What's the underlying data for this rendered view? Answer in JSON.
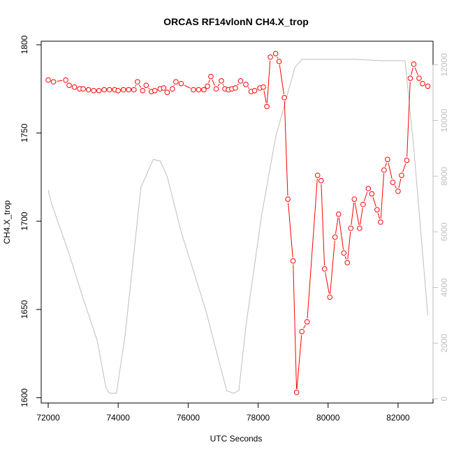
{
  "chart_data": {
    "type": "line",
    "title": "ORCAS RF14vlonN CH4.X_trop",
    "xlabel": "UTC Seconds",
    "ylabel": "CH4.X_trop",
    "xlim": [
      71800,
      83000
    ],
    "ylim": [
      1597,
      1802
    ],
    "y2lim": [
      -150,
      12850
    ],
    "xticks": [
      "72000",
      "74000",
      "76000",
      "78000",
      "80000",
      "82000"
    ],
    "yticks": [
      "1600",
      "1650",
      "1700",
      "1750",
      "1800"
    ],
    "y2ticks": [
      "0",
      "2000",
      "4000",
      "6000",
      "8000",
      "10000",
      "12000"
    ],
    "grid": false,
    "legend": "none",
    "colors": {
      "primary": "#ff0000",
      "secondary": "#bebebe"
    },
    "series": [
      {
        "axis": "left",
        "style": "line+circles",
        "x": [
          72000,
          72150,
          72500,
          72600,
          72750,
          72900,
          73000,
          73150,
          73300,
          73450,
          73600,
          73750,
          73900,
          74000,
          74150,
          74300,
          74450,
          74550,
          74700,
          74800,
          74950,
          75050,
          75200,
          75300,
          75400,
          75550,
          75650,
          75800,
          76150,
          76300,
          76450,
          76550,
          76650,
          76800,
          76950,
          77050,
          77150,
          77250,
          77350,
          77500,
          77650,
          77800,
          77900,
          78050,
          78150,
          78250,
          78350,
          78500,
          78600,
          78750,
          78850,
          79000,
          79100,
          79250,
          79400,
          79700,
          79800,
          79900,
          80050,
          80200,
          80300,
          80450,
          80550,
          80650,
          80750,
          80900,
          81000,
          81150,
          81250,
          81400,
          81500,
          81600,
          81700,
          81850,
          82000,
          82100,
          82250,
          82350,
          82450,
          82600,
          82700,
          82850
        ],
        "y": [
          1780,
          1779,
          1780,
          1777,
          1776,
          1775,
          1775,
          1774.5,
          1774,
          1774,
          1774.5,
          1774.5,
          1774.5,
          1774,
          1774.5,
          1774.5,
          1774.5,
          1779,
          1774,
          1777,
          1773.5,
          1774,
          1775,
          1775.5,
          1773,
          1775,
          1779,
          1778,
          1774.5,
          1774.5,
          1774.5,
          1776.5,
          1782,
          1775,
          1779.5,
          1775,
          1774.5,
          1775,
          1775.5,
          1779.5,
          1777.5,
          1773.5,
          1774,
          1775.5,
          1776,
          1765,
          1793,
          1795,
          1790.5,
          1770,
          1712.5,
          1677.5,
          1603,
          1637.5,
          1643,
          1726,
          1723,
          1673,
          1657,
          1691,
          1704,
          1682,
          1676.5,
          1696,
          1712.5,
          1696,
          1709.5,
          1718.5,
          1715.5,
          1706.5,
          1699.5,
          1729,
          1735,
          1722,
          1717,
          1726,
          1734.5,
          1781,
          1789,
          1781,
          1778,
          1776.5
        ]
      },
      {
        "axis": "right",
        "style": "line",
        "x": [
          72000,
          72100,
          72600,
          73000,
          73400,
          73650,
          73750,
          73950,
          74200,
          74650,
          75000,
          75200,
          75400,
          75800,
          76500,
          77100,
          77300,
          77450,
          77650,
          78100,
          78500,
          78850,
          79050,
          79250,
          79400,
          80000,
          80800,
          81500,
          82200,
          82450,
          82850
        ],
        "y": [
          7500,
          7000,
          5200,
          3600,
          2100,
          400,
          200,
          200,
          2300,
          7600,
          8600,
          8550,
          8000,
          6000,
          3200,
          300,
          200,
          300,
          2600,
          6600,
          9400,
          11000,
          11900,
          12200,
          12200,
          12200,
          12200,
          12150,
          12150,
          9000,
          3000
        ]
      }
    ]
  }
}
